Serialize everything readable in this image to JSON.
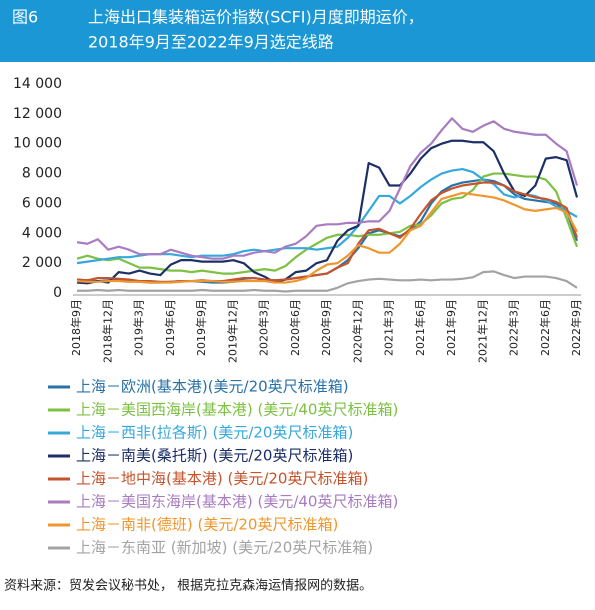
{
  "header": {
    "label": "图6",
    "title_lines": [
      "上海出口集装箱运价指数(SCFI)月度即期运价，",
      "2018年9月至2022年9月选定线路"
    ]
  },
  "source": "资料来源：贸发会议秘书处， 根据克拉克森海运情报网的数据。",
  "chart_data": {
    "type": "line",
    "categories": [
      "2018年9月",
      null,
      null,
      "2018年12月",
      null,
      null,
      "2019年3月",
      null,
      null,
      "2019年6月",
      null,
      null,
      "2019年9月",
      null,
      null,
      "2019年12月",
      null,
      null,
      "2020年3月",
      null,
      null,
      "2020年6月",
      null,
      null,
      "2020年9月",
      null,
      null,
      "2020年12月",
      null,
      null,
      "2021年3月",
      null,
      null,
      "2021年6月",
      null,
      null,
      "2021年9月",
      null,
      null,
      "2021年12月",
      null,
      null,
      "2022年3月",
      null,
      null,
      "2022年6月",
      null,
      null,
      "2022年9月"
    ],
    "ylim": [
      0,
      14000
    ],
    "yticks": [
      0,
      {
        "value": 2000,
        "label": "2 000"
      },
      {
        "value": 4000,
        "label": "4 000"
      },
      {
        "value": 6000,
        "label": "6 000"
      },
      {
        "value": 8000,
        "label": "8 000"
      },
      {
        "value": 10000,
        "label": "10 000"
      },
      {
        "value": 12000,
        "label": "12 000"
      },
      {
        "value": 14000,
        "label": "14 000"
      }
    ],
    "grid": false,
    "series": [
      {
        "name": "上海－欧洲(基本港)(美元/20英尺标准箱)",
        "color": "#2872a8",
        "values": [
          900,
          850,
          800,
          850,
          900,
          800,
          750,
          700,
          700,
          750,
          800,
          800,
          750,
          700,
          700,
          750,
          950,
          1000,
          900,
          850,
          900,
          1000,
          1100,
          1200,
          1300,
          1700,
          2200,
          3000,
          4000,
          4200,
          4000,
          3800,
          4200,
          4800,
          6000,
          6800,
          7200,
          7400,
          7500,
          7600,
          7500,
          7200,
          6600,
          6300,
          6200,
          6100,
          6000,
          5500,
          3500
        ]
      },
      {
        "name": "上海－美国西海岸(基本港) (美元/40英尺标准箱)",
        "color": "#7cc142",
        "values": [
          2300,
          2500,
          2300,
          2200,
          2300,
          2000,
          1700,
          1700,
          1600,
          1500,
          1500,
          1400,
          1500,
          1400,
          1300,
          1300,
          1400,
          1500,
          1600,
          1500,
          1800,
          2400,
          2900,
          3300,
          3700,
          3900,
          3900,
          3800,
          3900,
          3900,
          4000,
          4100,
          4500,
          4600,
          5200,
          6000,
          6300,
          6400,
          6900,
          7800,
          8000,
          8000,
          7900,
          7800,
          7800,
          7600,
          6800,
          5000,
          3100
        ]
      },
      {
        "name": "上海－西非(拉各斯) (美元/20英尺标准箱)",
        "color": "#35a8dc",
        "values": [
          2000,
          2100,
          2200,
          2300,
          2400,
          2400,
          2500,
          2600,
          2600,
          2600,
          2500,
          2400,
          2500,
          2500,
          2500,
          2600,
          2800,
          2900,
          2800,
          2900,
          3000,
          3000,
          3000,
          2900,
          3000,
          3100,
          3700,
          4500,
          5500,
          6500,
          6500,
          6000,
          6500,
          7100,
          7600,
          8000,
          8200,
          8300,
          8100,
          7600,
          7300,
          6600,
          6400,
          6600,
          6500,
          6200,
          5800,
          5500,
          5100
        ]
      },
      {
        "name": "上海－南美(桑托斯) (美元/20英尺标准箱)",
        "color": "#1c2f66",
        "values": [
          700,
          650,
          800,
          700,
          1400,
          1300,
          1500,
          1300,
          1200,
          1900,
          2200,
          2200,
          2100,
          2100,
          2100,
          2200,
          2000,
          1400,
          1100,
          700,
          900,
          1400,
          1500,
          2000,
          2200,
          3500,
          4200,
          4500,
          8700,
          8400,
          7200,
          7200,
          8000,
          9000,
          9700,
          10000,
          10200,
          10200,
          10100,
          10100,
          9500,
          8000,
          6800,
          6500,
          7200,
          9000,
          9100,
          8900,
          6400
        ]
      },
      {
        "name": "上海－地中海(基本港) (美元/20英尺标准箱)",
        "color": "#c5532b",
        "values": [
          900,
          850,
          1000,
          1000,
          950,
          900,
          800,
          800,
          750,
          750,
          800,
          800,
          850,
          800,
          800,
          900,
          1000,
          1000,
          900,
          850,
          900,
          1000,
          1100,
          1200,
          1300,
          1700,
          2000,
          3300,
          4200,
          4300,
          4000,
          3700,
          4300,
          5300,
          6200,
          6700,
          7000,
          7200,
          7300,
          7400,
          7400,
          7200,
          6800,
          6600,
          6400,
          6300,
          6100,
          5700,
          3700
        ]
      },
      {
        "name": "上海－美国东海岸(基本港) (美元/40英尺标准箱)",
        "color": "#a97cc2",
        "values": [
          3400,
          3300,
          3600,
          2900,
          3100,
          2900,
          2600,
          2600,
          2600,
          2900,
          2700,
          2500,
          2400,
          2300,
          2300,
          2500,
          2500,
          2700,
          2800,
          2700,
          3100,
          3300,
          3800,
          4500,
          4600,
          4600,
          4700,
          4700,
          4800,
          4800,
          5500,
          7000,
          8500,
          9400,
          10000,
          10900,
          11700,
          11000,
          10800,
          11200,
          11500,
          11000,
          10800,
          10700,
          10600,
          10600,
          10000,
          9500,
          7200
        ]
      },
      {
        "name": "上海－南非(德班) (美元/20英尺标准箱)",
        "color": "#f0962e",
        "values": [
          800,
          750,
          750,
          800,
          800,
          750,
          750,
          700,
          700,
          700,
          750,
          800,
          800,
          800,
          750,
          750,
          800,
          800,
          800,
          700,
          700,
          800,
          1000,
          1500,
          1900,
          2000,
          2500,
          3200,
          3000,
          2700,
          2700,
          3300,
          4200,
          4500,
          5400,
          6300,
          6500,
          6700,
          6600,
          6500,
          6400,
          6200,
          5900,
          5600,
          5500,
          5600,
          5700,
          5400,
          4100
        ]
      },
      {
        "name": "上海－东南亚 (新加坡) (美元/20英尺标准箱)",
        "color": "#a3a3a3",
        "values": [
          150,
          150,
          200,
          150,
          200,
          150,
          150,
          150,
          150,
          150,
          150,
          150,
          200,
          150,
          150,
          150,
          150,
          200,
          150,
          150,
          100,
          150,
          150,
          150,
          150,
          350,
          650,
          800,
          900,
          950,
          900,
          850,
          850,
          900,
          850,
          900,
          900,
          950,
          1050,
          1400,
          1450,
          1200,
          1000,
          1100,
          1100,
          1100,
          1000,
          800,
          350
        ]
      }
    ]
  }
}
